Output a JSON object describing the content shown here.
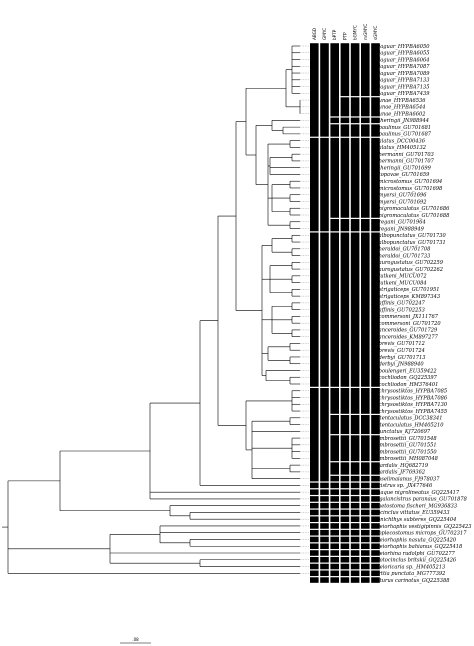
{
  "columns": [
    "ABGD",
    "GMYC",
    "bPTP",
    "PTP",
    "bGMYC",
    "mGMYC",
    "sGMYC"
  ],
  "taxa": [
    {
      "label": "H. jaguar_HYPBA6050",
      "segs": [
        0,
        0,
        0,
        0,
        0,
        0,
        0
      ]
    },
    {
      "label": "H. jaguar_HYPBA6055",
      "segs": [
        0,
        0,
        0,
        0,
        0,
        0,
        0
      ]
    },
    {
      "label": "H. jaguar_HYPBA6064",
      "segs": [
        0,
        0,
        0,
        0,
        0,
        0,
        0
      ]
    },
    {
      "label": "H. jaguar_HYPBA7087",
      "segs": [
        0,
        0,
        0,
        0,
        0,
        0,
        0
      ]
    },
    {
      "label": "H. jaguar_HYPBA7089",
      "segs": [
        0,
        0,
        0,
        0,
        0,
        0,
        0
      ]
    },
    {
      "label": "H. jaguar_HYPBA7133",
      "segs": [
        0,
        0,
        0,
        0,
        0,
        0,
        0
      ]
    },
    {
      "label": "H. jaguar_HYPBA7135",
      "segs": [
        0,
        0,
        0,
        0,
        0,
        0,
        0
      ]
    },
    {
      "label": "H. jaguar_HYPBA7439",
      "segs": [
        0,
        0,
        0,
        0,
        0,
        0,
        0
      ]
    },
    {
      "label": "H. unae_HYPBA6536",
      "segs": [
        0,
        0,
        0,
        1,
        1,
        1,
        1
      ]
    },
    {
      "label": "H. unae_HYPBA6544",
      "segs": [
        0,
        0,
        0,
        1,
        1,
        1,
        1
      ]
    },
    {
      "label": "H. unae_HYPBA6602",
      "segs": [
        0,
        0,
        0,
        1,
        1,
        1,
        1
      ]
    },
    {
      "label": "H. iheringii_JN988944",
      "segs": [
        0,
        0,
        2,
        3,
        2,
        2,
        2
      ]
    },
    {
      "label": "H. paulinus_GU701681",
      "segs": [
        0,
        0,
        3,
        4,
        3,
        3,
        3
      ]
    },
    {
      "label": "H. paulinus_GU701687",
      "segs": [
        0,
        0,
        3,
        4,
        3,
        3,
        3
      ]
    },
    {
      "label": "H. alatus_DCC00436",
      "segs": [
        1,
        1,
        4,
        5,
        4,
        4,
        4
      ]
    },
    {
      "label": "H. alatus_HM405132",
      "segs": [
        1,
        1,
        4,
        5,
        4,
        4,
        4
      ]
    },
    {
      "label": "H. hermanni_GU701703",
      "segs": [
        1,
        1,
        4,
        5,
        4,
        4,
        4
      ]
    },
    {
      "label": "H. hermanni_GU701707",
      "segs": [
        1,
        1,
        4,
        5,
        4,
        4,
        4
      ]
    },
    {
      "label": "H. iheringii_GU701699",
      "segs": [
        1,
        1,
        4,
        5,
        4,
        4,
        4
      ]
    },
    {
      "label": "H. topavae_GU701659",
      "segs": [
        1,
        1,
        4,
        5,
        4,
        4,
        4
      ]
    },
    {
      "label": "H. microstomus_GU701694",
      "segs": [
        1,
        1,
        4,
        5,
        4,
        4,
        4
      ]
    },
    {
      "label": "H. microstomus_GU701698",
      "segs": [
        1,
        1,
        4,
        5,
        4,
        4,
        4
      ]
    },
    {
      "label": "H. myersi_GU701696",
      "segs": [
        1,
        1,
        4,
        5,
        4,
        4,
        4
      ]
    },
    {
      "label": "H. myersi_GU701692",
      "segs": [
        1,
        1,
        4,
        5,
        4,
        4,
        4
      ]
    },
    {
      "label": "H. nigromaculatus_GU701686",
      "segs": [
        1,
        1,
        4,
        5,
        4,
        4,
        4
      ]
    },
    {
      "label": "H. nigromaculatus_GU701688",
      "segs": [
        1,
        1,
        4,
        5,
        4,
        4,
        4
      ]
    },
    {
      "label": "H. regani_GU701964",
      "segs": [
        1,
        1,
        5,
        6,
        5,
        5,
        5
      ]
    },
    {
      "label": "H. regani_JN988949",
      "segs": [
        1,
        1,
        5,
        6,
        5,
        5,
        5
      ]
    },
    {
      "label": "H. albopunctatus_GU701730",
      "segs": [
        2,
        2,
        6,
        7,
        6,
        6,
        6
      ]
    },
    {
      "label": "H. albopunctatus_GU701731",
      "segs": [
        2,
        2,
        6,
        7,
        6,
        6,
        6
      ]
    },
    {
      "label": "H. heraldoi_GU701708",
      "segs": [
        2,
        2,
        6,
        7,
        6,
        6,
        6
      ]
    },
    {
      "label": "H. heraldoi_GU701733",
      "segs": [
        2,
        2,
        6,
        7,
        6,
        6,
        6
      ]
    },
    {
      "label": "H. aurogustatus_GU702259",
      "segs": [
        2,
        2,
        6,
        7,
        6,
        6,
        6
      ]
    },
    {
      "label": "H. aurogustatus_GU702262",
      "segs": [
        2,
        2,
        6,
        7,
        6,
        6,
        6
      ]
    },
    {
      "label": "H. lutkeni_MUCU072",
      "segs": [
        2,
        2,
        6,
        7,
        6,
        6,
        6
      ]
    },
    {
      "label": "H. lutkeni_MUCU084",
      "segs": [
        2,
        2,
        6,
        7,
        6,
        6,
        6
      ]
    },
    {
      "label": "H. strigaticeps_GU701951",
      "segs": [
        2,
        2,
        6,
        7,
        6,
        6,
        6
      ]
    },
    {
      "label": "H. strigaticeps_KM897343",
      "segs": [
        2,
        2,
        6,
        7,
        6,
        6,
        6
      ]
    },
    {
      "label": "H. affinis_GU702247",
      "segs": [
        2,
        2,
        6,
        7,
        6,
        6,
        6
      ]
    },
    {
      "label": "H. affinis_GU702253",
      "segs": [
        2,
        2,
        6,
        7,
        6,
        6,
        6
      ]
    },
    {
      "label": "H. commersoni_JX111767",
      "segs": [
        2,
        2,
        6,
        7,
        6,
        6,
        6
      ]
    },
    {
      "label": "H. commersoni_GU701720",
      "segs": [
        2,
        2,
        6,
        7,
        6,
        6,
        6
      ]
    },
    {
      "label": "H. anceroides_GU701729",
      "segs": [
        2,
        2,
        6,
        7,
        6,
        6,
        6
      ]
    },
    {
      "label": "H. anceroides_KM897277",
      "segs": [
        2,
        2,
        6,
        7,
        6,
        6,
        6
      ]
    },
    {
      "label": "H. brevis_GU701712",
      "segs": [
        2,
        2,
        6,
        7,
        6,
        6,
        6
      ]
    },
    {
      "label": "H. brevis_GU701724",
      "segs": [
        2,
        2,
        6,
        7,
        6,
        6,
        6
      ]
    },
    {
      "label": "H. derbyi_GU701713",
      "segs": [
        2,
        2,
        6,
        7,
        6,
        6,
        6
      ]
    },
    {
      "label": "H. derbyi_JN988940",
      "segs": [
        2,
        2,
        6,
        7,
        6,
        6,
        6
      ]
    },
    {
      "label": "H. boulengeri_EU359422",
      "segs": [
        2,
        2,
        6,
        7,
        6,
        6,
        6
      ]
    },
    {
      "label": "H. cochliodon_GQ225397",
      "segs": [
        2,
        2,
        6,
        7,
        6,
        6,
        6
      ]
    },
    {
      "label": "H. cochliodon_HM376401",
      "segs": [
        2,
        2,
        6,
        7,
        6,
        6,
        6
      ]
    },
    {
      "label": "H. chrysostiktos_HYPBA7085",
      "segs": [
        3,
        3,
        7,
        8,
        7,
        7,
        7
      ]
    },
    {
      "label": "H. chrysostiktos_HYPBA7086",
      "segs": [
        3,
        3,
        7,
        8,
        7,
        7,
        7
      ]
    },
    {
      "label": "H. chrysostiktos_HYPBA7130",
      "segs": [
        3,
        3,
        7,
        8,
        7,
        7,
        7
      ]
    },
    {
      "label": "H. chrysostiktos_HYPBA7455",
      "segs": [
        3,
        3,
        7,
        8,
        7,
        7,
        7
      ]
    },
    {
      "label": "P. etentaculatus_DCC38341",
      "segs": [
        3,
        3,
        8,
        9,
        8,
        8,
        8
      ]
    },
    {
      "label": "P. etentaculatus_HM405210",
      "segs": [
        3,
        3,
        8,
        9,
        8,
        8,
        8
      ]
    },
    {
      "label": "P. punctatus_KJ720697",
      "segs": [
        3,
        3,
        8,
        9,
        8,
        8,
        8
      ]
    },
    {
      "label": "P. ambrosettii_GU701548",
      "segs": [
        3,
        3,
        9,
        10,
        9,
        9,
        9
      ]
    },
    {
      "label": "P. ambrosettii_GU701551",
      "segs": [
        3,
        3,
        9,
        10,
        9,
        9,
        9
      ]
    },
    {
      "label": "P. ambrosettii_GU701550",
      "segs": [
        3,
        3,
        9,
        10,
        9,
        9,
        9
      ]
    },
    {
      "label": "P. ambrosettii_MH087048",
      "segs": [
        3,
        3,
        9,
        10,
        9,
        9,
        9
      ]
    },
    {
      "label": "P. pardalis_HQ682719",
      "segs": [
        3,
        3,
        10,
        11,
        10,
        10,
        10
      ]
    },
    {
      "label": "P. pardalis_JF769362",
      "segs": [
        3,
        3,
        10,
        11,
        10,
        10,
        10
      ]
    },
    {
      "label": "P. joselimaianus_FJ978037",
      "segs": [
        3,
        3,
        11,
        12,
        11,
        11,
        11
      ]
    },
    {
      "label": "Ancistrus sp._JX477646",
      "segs": [
        4,
        4,
        12,
        13,
        12,
        12,
        12
      ]
    },
    {
      "label": "Panaque nigrolineatus_GQ225417",
      "segs": [
        5,
        5,
        13,
        14,
        13,
        13,
        13
      ]
    },
    {
      "label": "Megalancistrus paranaus_GU701878",
      "segs": [
        6,
        6,
        14,
        15,
        14,
        14,
        14
      ]
    },
    {
      "label": "Chaetostoma fischeri_MG936833",
      "segs": [
        7,
        7,
        15,
        16,
        15,
        15,
        15
      ]
    },
    {
      "label": "Otocinclus vittatus_EU359433",
      "segs": [
        8,
        8,
        16,
        17,
        16,
        16,
        16
      ]
    },
    {
      "label": "Kronichthys subteres_GQ225404",
      "segs": [
        9,
        9,
        17,
        18,
        17,
        17,
        17
      ]
    },
    {
      "label": "Pareiorhaphis vestigipinnis_GQ225423",
      "segs": [
        10,
        10,
        18,
        19,
        18,
        18,
        18
      ]
    },
    {
      "label": "Neoplecostomus microps_GU702317",
      "segs": [
        11,
        11,
        19,
        20,
        19,
        19,
        19
      ]
    },
    {
      "label": "Pareiorhaphis nasuta_GQ225420",
      "segs": [
        12,
        12,
        20,
        21,
        20,
        20,
        20
      ]
    },
    {
      "label": "Pareiorhaphis bahianus_GQ225418",
      "segs": [
        13,
        13,
        21,
        22,
        21,
        21,
        21
      ]
    },
    {
      "label": "Pareiorhina rudolphi_GU702277",
      "segs": [
        14,
        14,
        22,
        23,
        22,
        22,
        22
      ]
    },
    {
      "label": "Parotocinclus britskii_GQ225426",
      "segs": [
        15,
        15,
        23,
        24,
        23,
        23,
        23
      ]
    },
    {
      "label": "Rineloricaria sp._HM405213",
      "segs": [
        16,
        16,
        24,
        25,
        24,
        24,
        24
      ]
    },
    {
      "label": "Harttia punctata_MG777392",
      "segs": [
        17,
        17,
        25,
        26,
        25,
        25,
        25
      ]
    },
    {
      "label": "Delturus carinotus_GQ225388",
      "segs": [
        18,
        18,
        26,
        27,
        26,
        26,
        26
      ]
    }
  ],
  "scale_bar": {
    "label": ".08"
  }
}
